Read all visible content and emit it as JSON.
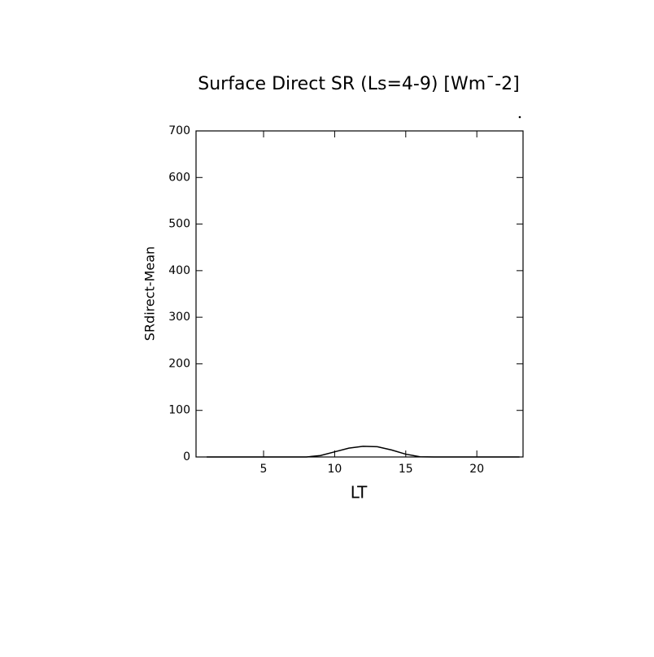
{
  "chart_data": {
    "type": "line",
    "title": "Surface Direct SR (Ls=4-9) [Wm¯-2]",
    "x_label": "LT",
    "y_label": "SRdirect-Mean",
    "x": [
      1,
      2,
      3,
      4,
      5,
      6,
      7,
      8,
      9,
      10,
      11,
      12,
      13,
      14,
      15,
      16,
      17,
      18,
      19,
      20,
      21,
      22,
      23
    ],
    "series": [
      {
        "color": "#000000",
        "values": [
          0,
          0,
          0,
          0,
          0,
          0,
          0,
          0,
          3,
          11,
          19,
          23,
          22,
          15,
          6,
          0.5,
          0,
          0,
          0,
          0,
          0,
          0,
          0
        ]
      }
    ],
    "xlim": [
      0.25,
      23.25
    ],
    "xticks": [
      5,
      10,
      15,
      20
    ],
    "ylim": [
      0,
      700
    ],
    "yticks": [
      0,
      100,
      200,
      300,
      400,
      500,
      600,
      700
    ]
  }
}
